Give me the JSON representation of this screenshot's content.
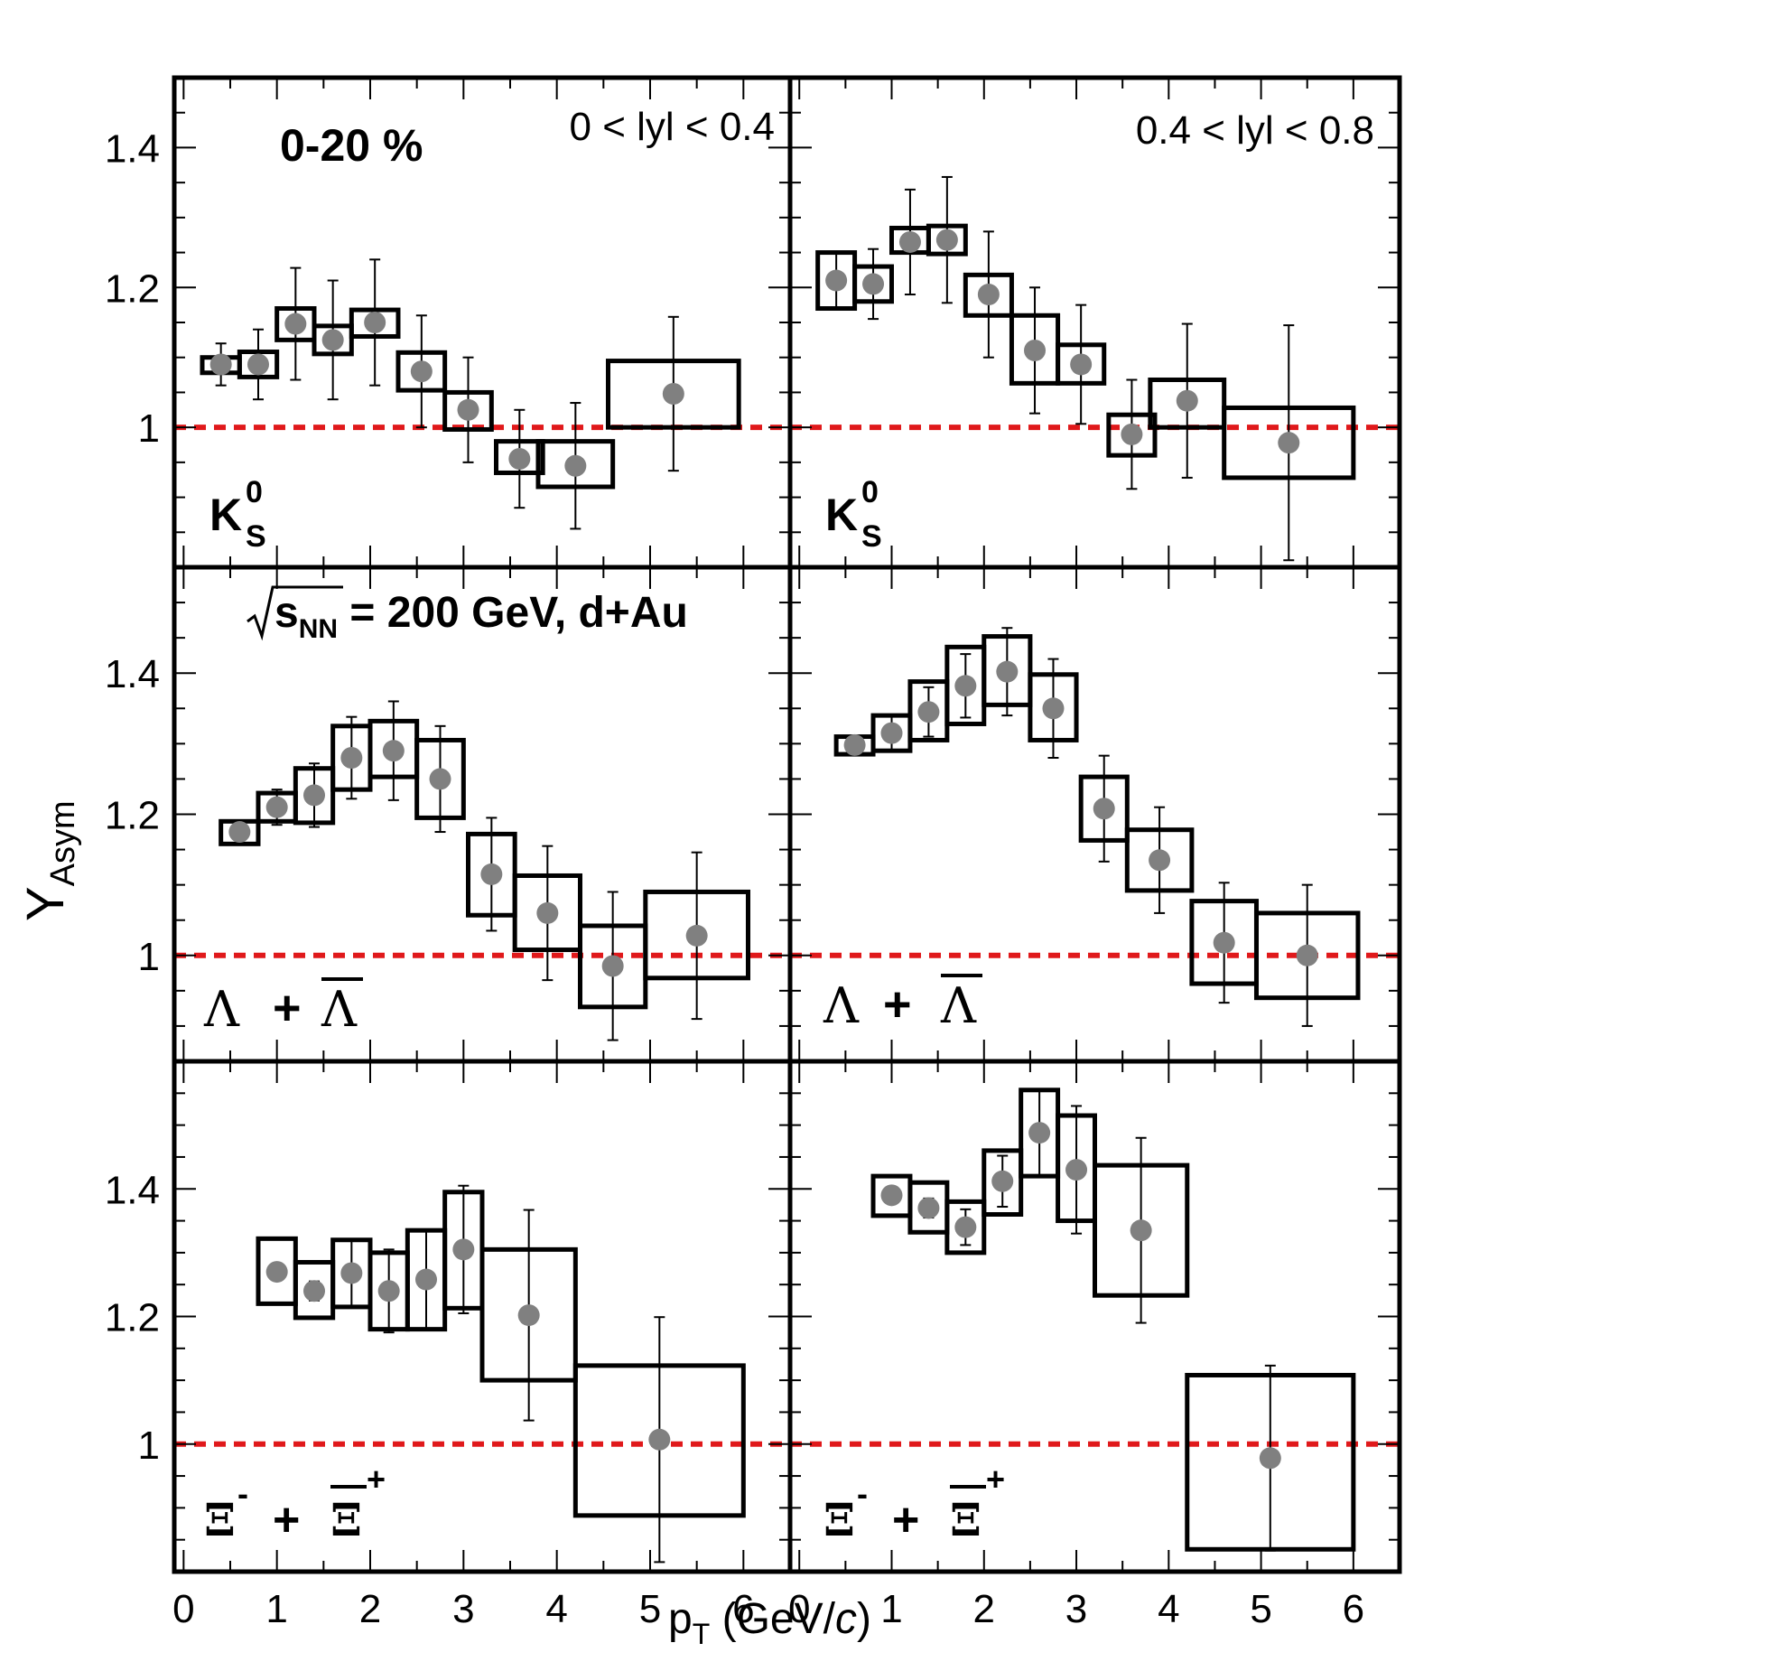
{
  "figure": {
    "ylabel_main": "Y",
    "ylabel_sub": "Asym",
    "xlabel_pre": "p",
    "xlabel_sub": "T",
    "xlabel_unit_open": " (GeV/",
    "xlabel_unit_c": "c",
    "xlabel_unit_close": ")",
    "centrality": "0-20 %",
    "energy_sym": "s",
    "energy_sub": "NN",
    "energy_rest": " = 200 GeV, d+Au",
    "ref_line_color": "#e0191b",
    "marker_color": "#808080",
    "row_labels": [
      {
        "base": "K",
        "sub": "S",
        "sup": "0"
      },
      {
        "text": "Λ + Λ"
      },
      {
        "text": "Ξ⁻ + Ξ⁺"
      }
    ]
  },
  "chart_data": [
    {
      "type": "scatter",
      "title": "0 < lyl < 0.4",
      "particle": "K0S",
      "xlim": [
        -0.1,
        6.5
      ],
      "ylim": [
        0.8,
        1.5
      ],
      "xticks": [
        0,
        1,
        2,
        3,
        4,
        5,
        6
      ],
      "yticks": [
        1,
        1.2,
        1.4
      ],
      "ytick_labels": [
        "1",
        "1.2",
        "1.4"
      ],
      "reference_y": 1,
      "points": [
        {
          "x": 0.4,
          "y": 1.09,
          "stat": 0.03,
          "sys_lo": 1.078,
          "sys_hi": 1.1,
          "xw": 0.4
        },
        {
          "x": 0.8,
          "y": 1.09,
          "stat": 0.05,
          "sys_lo": 1.072,
          "sys_hi": 1.108,
          "xw": 0.4
        },
        {
          "x": 1.2,
          "y": 1.148,
          "stat": 0.08,
          "sys_lo": 1.125,
          "sys_hi": 1.17,
          "xw": 0.4
        },
        {
          "x": 1.6,
          "y": 1.125,
          "stat": 0.085,
          "sys_lo": 1.105,
          "sys_hi": 1.145,
          "xw": 0.4
        },
        {
          "x": 2.05,
          "y": 1.15,
          "stat": 0.09,
          "sys_lo": 1.13,
          "sys_hi": 1.168,
          "xw": 0.5
        },
        {
          "x": 2.55,
          "y": 1.08,
          "stat": 0.08,
          "sys_lo": 1.053,
          "sys_hi": 1.107,
          "xw": 0.5
        },
        {
          "x": 3.05,
          "y": 1.025,
          "stat": 0.075,
          "sys_lo": 0.997,
          "sys_hi": 1.05,
          "xw": 0.5
        },
        {
          "x": 3.6,
          "y": 0.955,
          "stat": 0.07,
          "sys_lo": 0.935,
          "sys_hi": 0.98,
          "xw": 0.5
        },
        {
          "x": 4.2,
          "y": 0.945,
          "stat": 0.09,
          "sys_lo": 0.915,
          "sys_hi": 0.98,
          "xw": 0.8
        },
        {
          "x": 5.25,
          "y": 1.048,
          "stat": 0.11,
          "sys_lo": 1.0,
          "sys_hi": 1.095,
          "xw": 1.4
        }
      ]
    },
    {
      "type": "scatter",
      "title": "0.4 < lyl < 0.8",
      "particle": "K0S",
      "xlim": [
        -0.1,
        6.5
      ],
      "ylim": [
        0.8,
        1.5
      ],
      "xticks": [
        0,
        1,
        2,
        3,
        4,
        5,
        6
      ],
      "yticks": [
        1,
        1.2,
        1.4
      ],
      "reference_y": 1,
      "points": [
        {
          "x": 0.4,
          "y": 1.21,
          "stat": 0.04,
          "sys_lo": 1.17,
          "sys_hi": 1.25,
          "xw": 0.4
        },
        {
          "x": 0.8,
          "y": 1.205,
          "stat": 0.05,
          "sys_lo": 1.18,
          "sys_hi": 1.23,
          "xw": 0.4
        },
        {
          "x": 1.2,
          "y": 1.265,
          "stat": 0.075,
          "sys_lo": 1.25,
          "sys_hi": 1.285,
          "xw": 0.4
        },
        {
          "x": 1.6,
          "y": 1.268,
          "stat": 0.09,
          "sys_lo": 1.248,
          "sys_hi": 1.288,
          "xw": 0.4
        },
        {
          "x": 2.05,
          "y": 1.19,
          "stat": 0.09,
          "sys_lo": 1.16,
          "sys_hi": 1.218,
          "xw": 0.5
        },
        {
          "x": 2.55,
          "y": 1.11,
          "stat": 0.09,
          "sys_lo": 1.063,
          "sys_hi": 1.16,
          "xw": 0.5
        },
        {
          "x": 3.05,
          "y": 1.09,
          "stat": 0.085,
          "sys_lo": 1.063,
          "sys_hi": 1.118,
          "xw": 0.5
        },
        {
          "x": 3.6,
          "y": 0.99,
          "stat": 0.078,
          "sys_lo": 0.96,
          "sys_hi": 1.018,
          "xw": 0.5
        },
        {
          "x": 4.2,
          "y": 1.038,
          "stat": 0.11,
          "sys_lo": 1.0,
          "sys_hi": 1.068,
          "xw": 0.8
        },
        {
          "x": 5.3,
          "y": 0.978,
          "stat": 0.168,
          "sys_lo": 0.928,
          "sys_hi": 1.028,
          "xw": 1.4
        }
      ]
    },
    {
      "type": "scatter",
      "particle": "Lambda + AntiLambda",
      "xlim": [
        -0.1,
        6.5
      ],
      "ylim": [
        0.85,
        1.55
      ],
      "xticks": [
        0,
        1,
        2,
        3,
        4,
        5,
        6
      ],
      "yticks": [
        1,
        1.2,
        1.4
      ],
      "ytick_labels": [
        "1",
        "1.2",
        "1.4"
      ],
      "reference_y": 1,
      "points": [
        {
          "x": 0.6,
          "y": 1.175,
          "stat": 0.01,
          "sys_lo": 1.158,
          "sys_hi": 1.19,
          "xw": 0.4
        },
        {
          "x": 1.0,
          "y": 1.21,
          "stat": 0.025,
          "sys_lo": 1.19,
          "sys_hi": 1.23,
          "xw": 0.4
        },
        {
          "x": 1.4,
          "y": 1.227,
          "stat": 0.045,
          "sys_lo": 1.188,
          "sys_hi": 1.265,
          "xw": 0.4
        },
        {
          "x": 1.8,
          "y": 1.28,
          "stat": 0.058,
          "sys_lo": 1.235,
          "sys_hi": 1.325,
          "xw": 0.4
        },
        {
          "x": 2.25,
          "y": 1.29,
          "stat": 0.07,
          "sys_lo": 1.253,
          "sys_hi": 1.332,
          "xw": 0.5
        },
        {
          "x": 2.75,
          "y": 1.25,
          "stat": 0.075,
          "sys_lo": 1.195,
          "sys_hi": 1.305,
          "xw": 0.5
        },
        {
          "x": 3.3,
          "y": 1.115,
          "stat": 0.08,
          "sys_lo": 1.057,
          "sys_hi": 1.172,
          "xw": 0.5
        },
        {
          "x": 3.9,
          "y": 1.06,
          "stat": 0.095,
          "sys_lo": 1.008,
          "sys_hi": 1.113,
          "xw": 0.7
        },
        {
          "x": 4.6,
          "y": 0.985,
          "stat": 0.105,
          "sys_lo": 0.927,
          "sys_hi": 1.042,
          "xw": 0.7
        },
        {
          "x": 5.5,
          "y": 1.028,
          "stat": 0.118,
          "sys_lo": 0.968,
          "sys_hi": 1.09,
          "xw": 1.1
        }
      ]
    },
    {
      "type": "scatter",
      "particle": "Lambda + AntiLambda",
      "xlim": [
        -0.1,
        6.5
      ],
      "ylim": [
        0.85,
        1.55
      ],
      "xticks": [
        0,
        1,
        2,
        3,
        4,
        5,
        6
      ],
      "yticks": [
        1,
        1.2,
        1.4
      ],
      "reference_y": 1,
      "points": [
        {
          "x": 0.6,
          "y": 1.298,
          "stat": 0.01,
          "sys_lo": 1.285,
          "sys_hi": 1.31,
          "xw": 0.4
        },
        {
          "x": 1.0,
          "y": 1.315,
          "stat": 0.025,
          "sys_lo": 1.29,
          "sys_hi": 1.34,
          "xw": 0.4
        },
        {
          "x": 1.4,
          "y": 1.345,
          "stat": 0.035,
          "sys_lo": 1.305,
          "sys_hi": 1.388,
          "xw": 0.4
        },
        {
          "x": 1.8,
          "y": 1.382,
          "stat": 0.045,
          "sys_lo": 1.328,
          "sys_hi": 1.437,
          "xw": 0.4
        },
        {
          "x": 2.25,
          "y": 1.402,
          "stat": 0.062,
          "sys_lo": 1.355,
          "sys_hi": 1.452,
          "xw": 0.5
        },
        {
          "x": 2.75,
          "y": 1.35,
          "stat": 0.07,
          "sys_lo": 1.305,
          "sys_hi": 1.398,
          "xw": 0.5
        },
        {
          "x": 3.3,
          "y": 1.208,
          "stat": 0.075,
          "sys_lo": 1.163,
          "sys_hi": 1.253,
          "xw": 0.5
        },
        {
          "x": 3.9,
          "y": 1.135,
          "stat": 0.075,
          "sys_lo": 1.092,
          "sys_hi": 1.178,
          "xw": 0.7
        },
        {
          "x": 4.6,
          "y": 1.018,
          "stat": 0.085,
          "sys_lo": 0.96,
          "sys_hi": 1.077,
          "xw": 0.7
        },
        {
          "x": 5.5,
          "y": 1.0,
          "stat": 0.1,
          "sys_lo": 0.94,
          "sys_hi": 1.06,
          "xw": 1.1
        }
      ]
    },
    {
      "type": "scatter",
      "particle": "Xi- + AntiXi+",
      "xlim": [
        -0.1,
        6.5
      ],
      "ylim": [
        0.8,
        1.6
      ],
      "xticks": [
        0,
        1,
        2,
        3,
        4,
        5,
        6
      ],
      "yticks": [
        1,
        1.2,
        1.4
      ],
      "ytick_labels": [
        "1",
        "1.2",
        "1.4"
      ],
      "reference_y": 1,
      "points": [
        {
          "x": 1.0,
          "y": 1.27,
          "stat": 0.0,
          "sys_lo": 1.22,
          "sys_hi": 1.322,
          "xw": 0.4
        },
        {
          "x": 1.4,
          "y": 1.24,
          "stat": 0.015,
          "sys_lo": 1.198,
          "sys_hi": 1.285,
          "xw": 0.4
        },
        {
          "x": 1.8,
          "y": 1.268,
          "stat": 0.052,
          "sys_lo": 1.215,
          "sys_hi": 1.32,
          "xw": 0.4
        },
        {
          "x": 2.2,
          "y": 1.24,
          "stat": 0.065,
          "sys_lo": 1.18,
          "sys_hi": 1.3,
          "xw": 0.4
        },
        {
          "x": 2.6,
          "y": 1.258,
          "stat": 0.078,
          "sys_lo": 1.18,
          "sys_hi": 1.335,
          "xw": 0.4
        },
        {
          "x": 3.0,
          "y": 1.305,
          "stat": 0.1,
          "sys_lo": 1.213,
          "sys_hi": 1.395,
          "xw": 0.4
        },
        {
          "x": 3.7,
          "y": 1.202,
          "stat": 0.165,
          "sys_lo": 1.1,
          "sys_hi": 1.305,
          "xw": 1.0
        },
        {
          "x": 5.1,
          "y": 1.007,
          "stat": 0.192,
          "sys_lo": 0.888,
          "sys_hi": 1.123,
          "xw": 1.8
        }
      ]
    },
    {
      "type": "scatter",
      "particle": "Xi- + AntiXi+",
      "xlim": [
        -0.1,
        6.5
      ],
      "ylim": [
        0.8,
        1.6
      ],
      "xticks": [
        0,
        1,
        2,
        3,
        4,
        5,
        6
      ],
      "yticks": [
        1,
        1.2,
        1.4
      ],
      "reference_y": 1,
      "points": [
        {
          "x": 1.0,
          "y": 1.39,
          "stat": 0.0,
          "sys_lo": 1.358,
          "sys_hi": 1.42,
          "xw": 0.4
        },
        {
          "x": 1.4,
          "y": 1.37,
          "stat": 0.015,
          "sys_lo": 1.332,
          "sys_hi": 1.41,
          "xw": 0.4
        },
        {
          "x": 1.8,
          "y": 1.34,
          "stat": 0.028,
          "sys_lo": 1.3,
          "sys_hi": 1.38,
          "xw": 0.4
        },
        {
          "x": 2.2,
          "y": 1.412,
          "stat": 0.04,
          "sys_lo": 1.36,
          "sys_hi": 1.46,
          "xw": 0.4
        },
        {
          "x": 2.6,
          "y": 1.488,
          "stat": 0.068,
          "sys_lo": 1.42,
          "sys_hi": 1.555,
          "xw": 0.4
        },
        {
          "x": 3.0,
          "y": 1.43,
          "stat": 0.1,
          "sys_lo": 1.35,
          "sys_hi": 1.515,
          "xw": 0.4
        },
        {
          "x": 3.7,
          "y": 1.335,
          "stat": 0.145,
          "sys_lo": 1.233,
          "sys_hi": 1.437,
          "xw": 1.0
        },
        {
          "x": 5.1,
          "y": 0.978,
          "stat": 0.145,
          "sys_lo": 0.835,
          "sys_hi": 1.108,
          "xw": 1.8
        }
      ]
    }
  ]
}
